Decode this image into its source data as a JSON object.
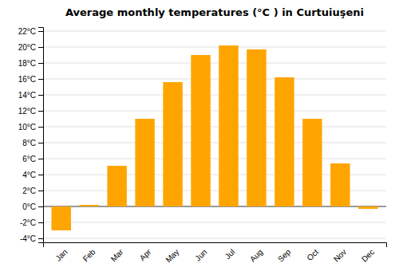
{
  "chart_data": {
    "type": "bar",
    "title": "Average monthly temperatures (°C ) in Curtuiuşeni",
    "categories": [
      "Jan",
      "Feb",
      "Mar",
      "Apr",
      "May",
      "Jun",
      "Jul",
      "Aug",
      "Sep",
      "Oct",
      "Nov",
      "Dec"
    ],
    "values": [
      -3.0,
      0.2,
      5.1,
      11.0,
      15.6,
      19.0,
      20.2,
      19.7,
      16.2,
      11.0,
      5.4,
      -0.3
    ],
    "color": "#FFA500",
    "ylim": [
      -4.5,
      22.5
    ],
    "yticks": [
      {
        "value": -4,
        "label": "-4°C"
      },
      {
        "value": -2,
        "label": "-2°C"
      },
      {
        "value": 0,
        "label": "0°C"
      },
      {
        "value": 2,
        "label": "2°C"
      },
      {
        "value": 4,
        "label": "4°C"
      },
      {
        "value": 6,
        "label": "6°C"
      },
      {
        "value": 8,
        "label": "8°C"
      },
      {
        "value": 10,
        "label": "10°C"
      },
      {
        "value": 12,
        "label": "12°C"
      },
      {
        "value": 14,
        "label": "14°C"
      },
      {
        "value": 16,
        "label": "16°C"
      },
      {
        "value": 18,
        "label": "18°C"
      },
      {
        "value": 20,
        "label": "20°C"
      },
      {
        "value": 22,
        "label": "22°C"
      }
    ],
    "grid": true
  }
}
